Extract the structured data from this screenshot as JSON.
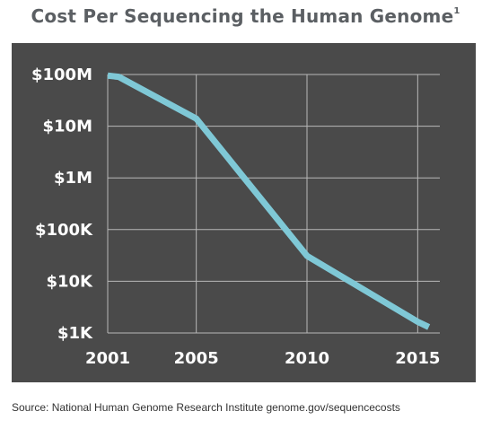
{
  "title": {
    "text": "Cost Per Sequencing the Human Genome",
    "footnote_marker": "1"
  },
  "source": "Source: National Human Genome Research Institute genome.gov/sequencecosts",
  "colors": {
    "panel_background": "#4a4a4a",
    "gridline": "#b8b8b8",
    "series_line": "#7fc8d6",
    "title": "#5b5f63"
  },
  "chart_data": {
    "type": "line",
    "title": "Cost Per Sequencing the Human Genome",
    "xlabel": "",
    "ylabel": "",
    "x_scale": "linear",
    "y_scale": "log",
    "xlim": [
      2001,
      2016
    ],
    "ylim": [
      1000,
      100000000
    ],
    "x_ticks": [
      2001,
      2005,
      2010,
      2015
    ],
    "x_tick_labels": [
      "2001",
      "2005",
      "2010",
      "2015"
    ],
    "y_ticks": [
      1000,
      10000,
      100000,
      1000000,
      10000000,
      100000000
    ],
    "y_tick_labels": [
      "$1K",
      "$10K",
      "$100K",
      "$1M",
      "$10M",
      "$100M"
    ],
    "grid": true,
    "legend": "none",
    "series": [
      {
        "x": [
          2001,
          2001.5,
          2005,
          2010,
          2015,
          2015.5
        ],
        "y": [
          95000000,
          90000000,
          14000000,
          31000,
          1650,
          1300
        ]
      }
    ]
  }
}
